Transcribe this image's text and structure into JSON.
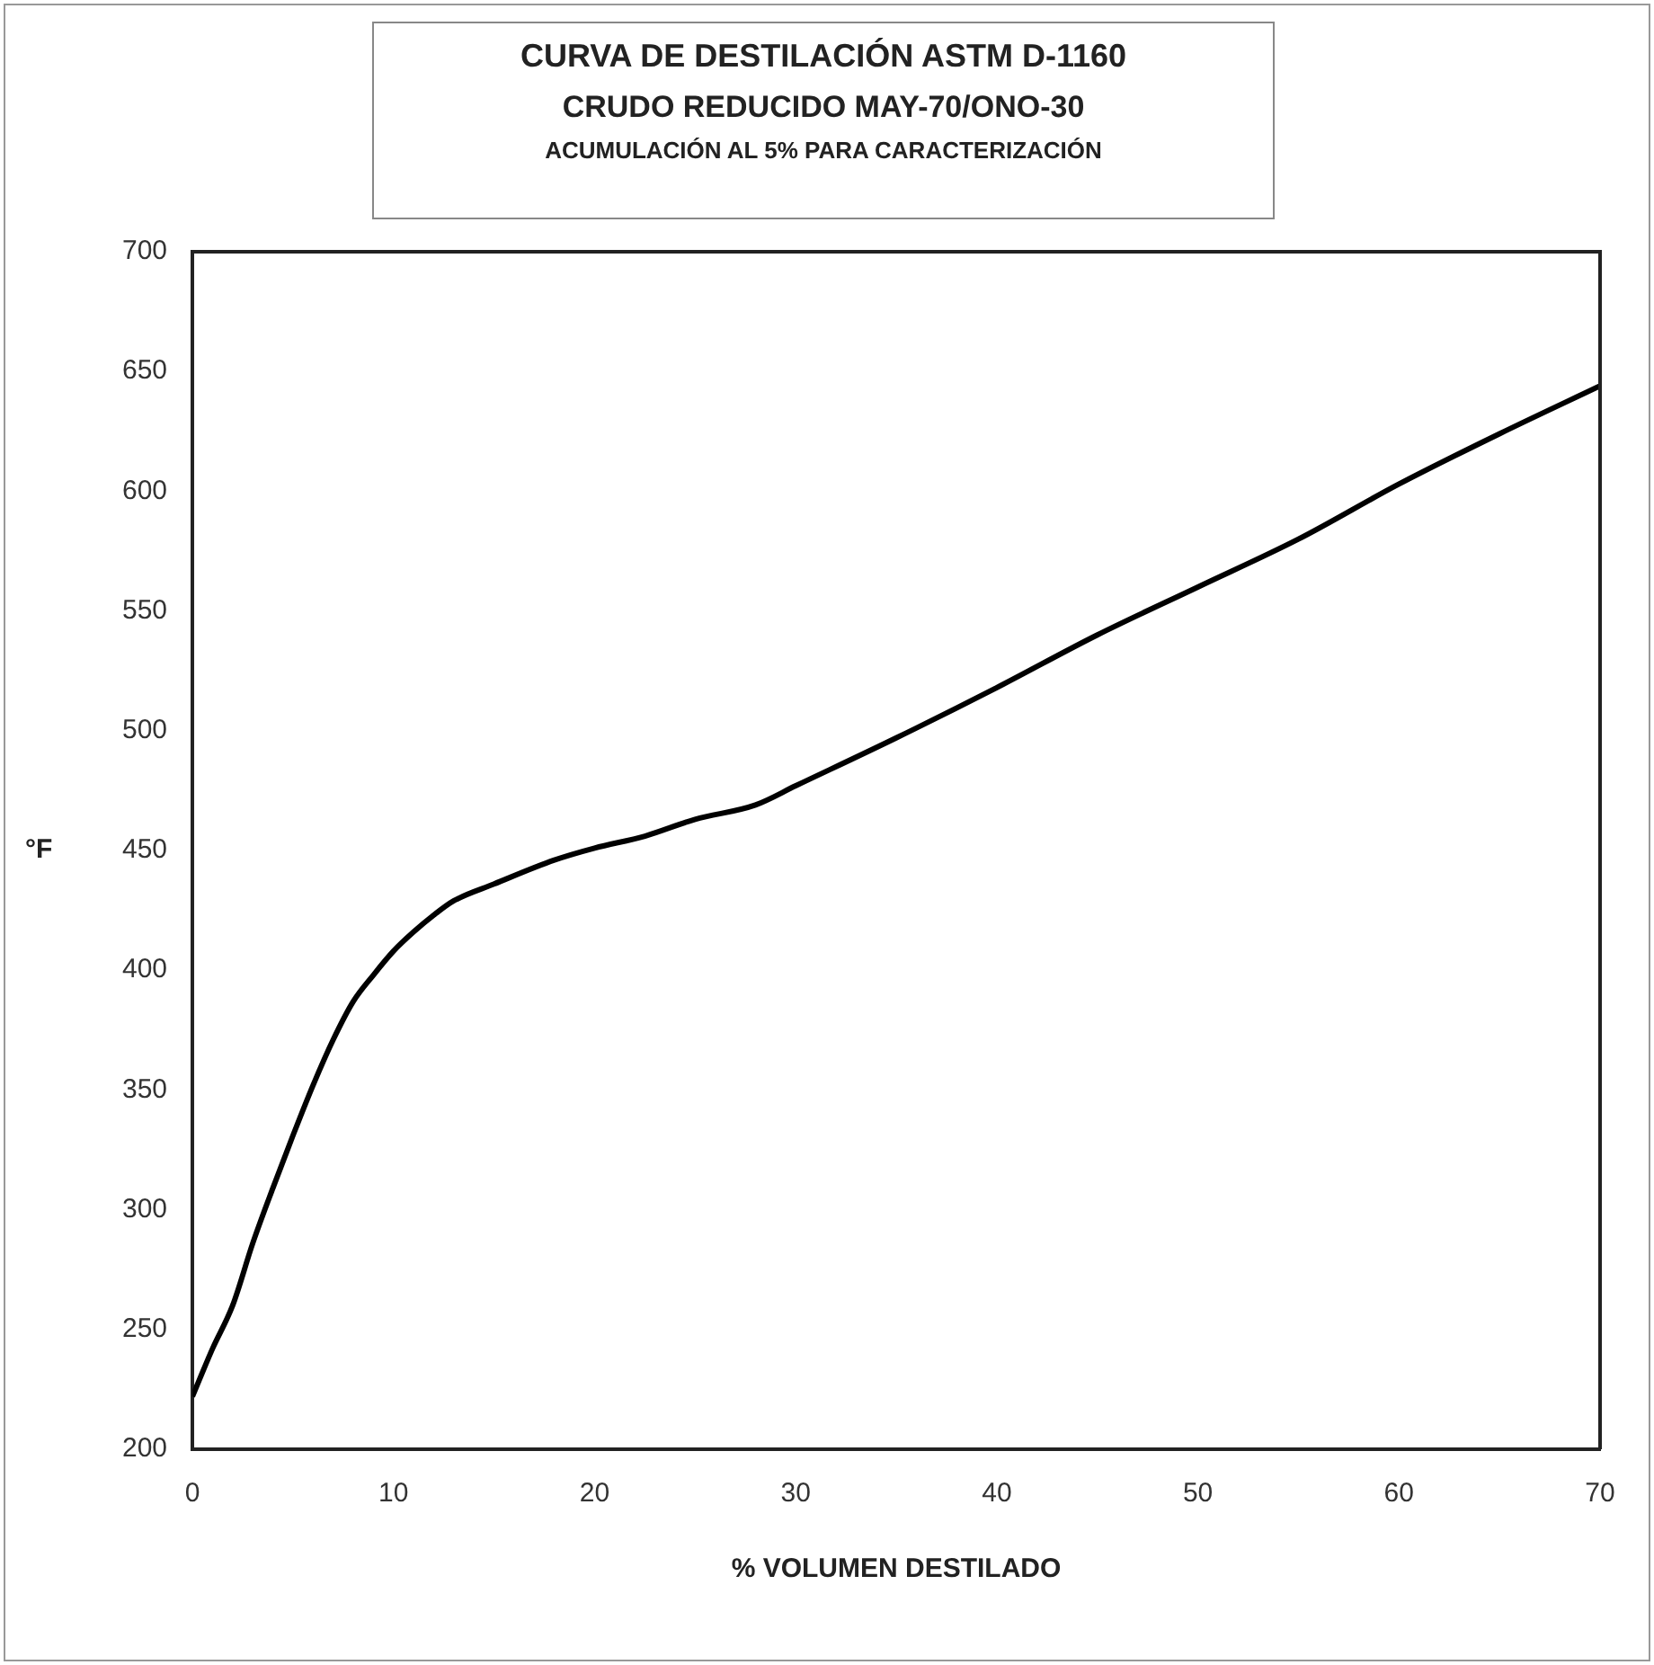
{
  "chart_data": {
    "type": "line",
    "title": "CURVA DE DESTILACIÓN ASTM D-1160",
    "subtitle": "CRUDO REDUCIDO MAY-70/ONO-30",
    "annotations": [
      "ACUMULACIÓN AL 5% PARA CARACTERIZACIÓN"
    ],
    "xlabel": "% VOLUMEN DESTILADO",
    "ylabel": "°F",
    "x": [
      0,
      1,
      2,
      3,
      4,
      5,
      6,
      7,
      8,
      9,
      10,
      11,
      12,
      13,
      15,
      18,
      20,
      22.5,
      25,
      28,
      30,
      35,
      40,
      45,
      50,
      55,
      60,
      65,
      70
    ],
    "series": [
      {
        "color": "#000000",
        "values": [
          222,
          242,
          260,
          286,
          309,
          331,
          352,
          371,
          387,
          398,
          408,
          416,
          423,
          429,
          436,
          446,
          451,
          456,
          463,
          469,
          477,
          497,
          518,
          540,
          560,
          580,
          603,
          624,
          644
        ]
      }
    ],
    "xlim": [
      0,
      70
    ],
    "xticks": [
      0,
      10,
      20,
      30,
      40,
      50,
      60,
      70
    ],
    "ylim": [
      200,
      700
    ],
    "yticks": [
      200,
      250,
      300,
      350,
      400,
      450,
      500,
      550,
      600,
      650,
      700
    ],
    "grid": false,
    "legend": false,
    "marker": "none",
    "line_style": "solid"
  }
}
